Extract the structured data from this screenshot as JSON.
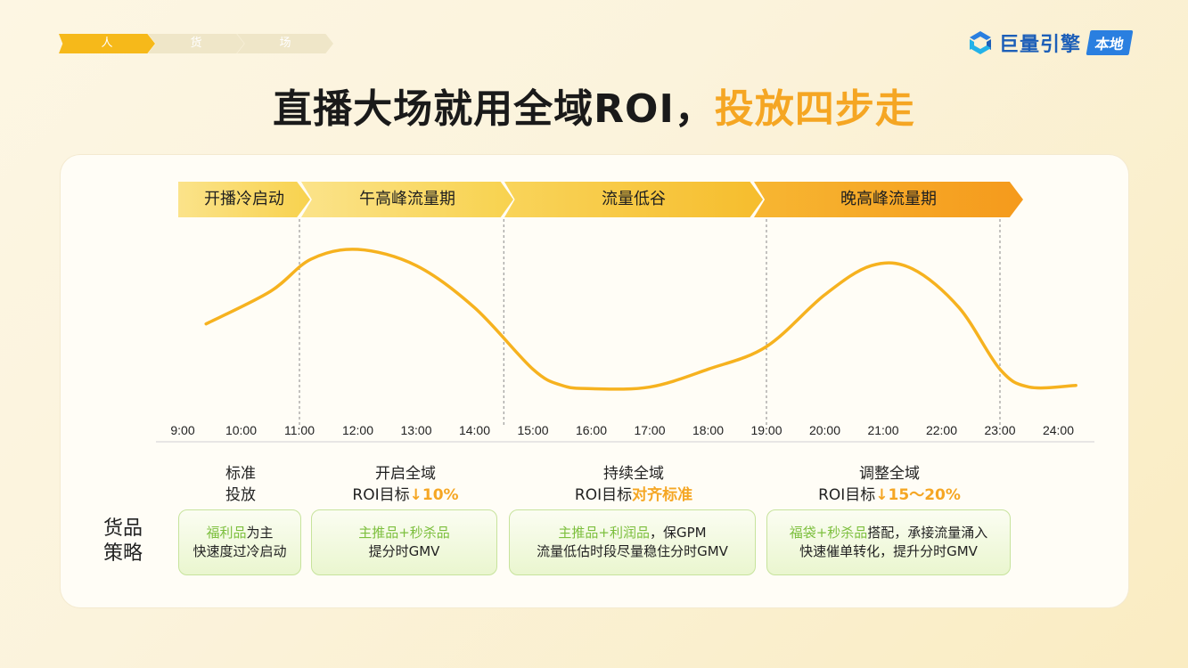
{
  "breadcrumb": [
    "人",
    "货",
    "场"
  ],
  "logo": {
    "text": "巨量引擎",
    "tag": "本地"
  },
  "title": {
    "main": "直播大场就用全域ROI，",
    "accent": "投放四步走"
  },
  "phases": [
    "开播冷启动",
    "午高峰流量期",
    "流量低谷",
    "晚高峰流量期"
  ],
  "chart_data": {
    "type": "line",
    "x": [
      "9:00",
      "10:00",
      "11:00",
      "12:00",
      "13:00",
      "14:00",
      "15:00",
      "16:00",
      "17:00",
      "18:00",
      "19:00",
      "20:00",
      "21:00",
      "22:00",
      "23:00",
      "24:00"
    ],
    "title": "",
    "xlabel": "",
    "ylabel": "",
    "series": [
      {
        "points": [
          [
            9.4,
            0.42
          ],
          [
            10.5,
            0.62
          ],
          [
            11.2,
            0.82
          ],
          [
            12,
            0.88
          ],
          [
            13,
            0.78
          ],
          [
            14,
            0.52
          ],
          [
            15,
            0.14
          ],
          [
            15.5,
            0.04
          ],
          [
            16,
            0.02
          ],
          [
            17,
            0.03
          ],
          [
            18,
            0.14
          ],
          [
            19,
            0.28
          ],
          [
            20,
            0.6
          ],
          [
            20.8,
            0.78
          ],
          [
            21.5,
            0.76
          ],
          [
            22.3,
            0.52
          ],
          [
            23,
            0.14
          ],
          [
            23.5,
            0.03
          ],
          [
            24.3,
            0.04
          ]
        ]
      }
    ],
    "phase_boundaries": [
      "11:00",
      "14:30",
      "19:00",
      "23:00"
    ],
    "line_color": "#f6b21f"
  },
  "strategy": [
    {
      "line1": "标准",
      "line2a": "投放",
      "line2b": ""
    },
    {
      "line1": "开启全域",
      "line2a": "ROI目标",
      "line2b": "↓10%"
    },
    {
      "line1": "持续全域",
      "line2a": "ROI目标",
      "line2b": "对齐标准"
    },
    {
      "line1": "调整全域",
      "line2a": "ROI目标",
      "line2b": "↓15～20%"
    }
  ],
  "goods_label": {
    "l1": "货品",
    "l2": "策略"
  },
  "goods": [
    {
      "g1": "福利品",
      "t1": "为主",
      "t2": "快速度过冷启动"
    },
    {
      "g1": "主推品+秒杀品",
      "t1": "",
      "t2": "提分时GMV"
    },
    {
      "g1": "主推品+利润品",
      "t1": "，保GPM",
      "t2": "流量低估时段尽量稳住分时GMV"
    },
    {
      "g1": "福袋+秒杀品",
      "t1": "搭配，承接流量涌入",
      "t2": "快速催单转化，提升分时GMV"
    }
  ]
}
